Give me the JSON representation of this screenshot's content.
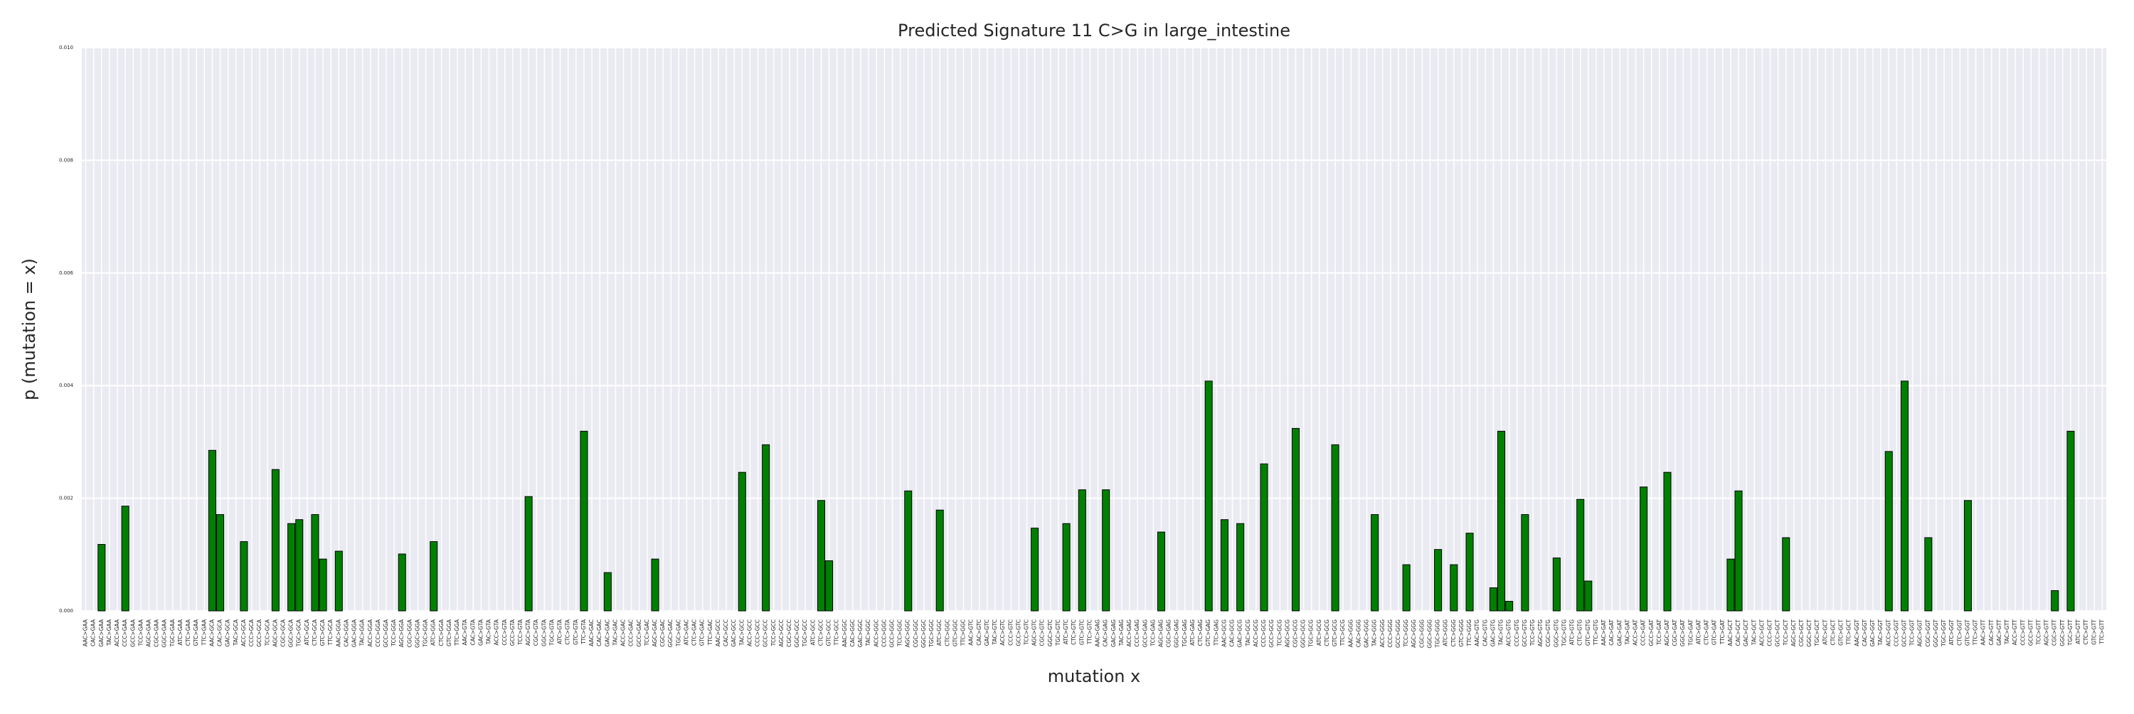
{
  "chart_data": {
    "type": "bar",
    "title": "Predicted Signature 11 C>G in large_intestine",
    "x_label": "mutation x",
    "y_label": "p (mutation = x)",
    "color": "#008000",
    "edge_color": "#000000",
    "grid": true,
    "ylim": [
      0,
      0.01
    ],
    "yticks": [
      {
        "value": 0,
        "label": "0.000"
      },
      {
        "value": 0.002,
        "label": "0.002"
      },
      {
        "value": 0.004,
        "label": "0.004"
      },
      {
        "value": 0.006,
        "label": "0.006"
      },
      {
        "value": 0.008,
        "label": "0.008"
      },
      {
        "value": 0.01,
        "label": "0.010"
      }
    ],
    "categories": [
      "AAC>GAA",
      "CAC>GAA",
      "GAC>GAA",
      "TAC>GAA",
      "ACC>GAA",
      "CCC>GAA",
      "GCC>GAA",
      "TCC>GAA",
      "AGC>GAA",
      "CGC>GAA",
      "GGC>GAA",
      "TGC>GAA",
      "ATC>GAA",
      "CTC>GAA",
      "GTC>GAA",
      "TTC>GAA",
      "AAC>GCA",
      "CAC>GCA",
      "GAC>GCA",
      "TAC>GCA",
      "ACC>GCA",
      "CCC>GCA",
      "GCC>GCA",
      "TCC>GCA",
      "AGC>GCA",
      "CGC>GCA",
      "GGC>GCA",
      "TGC>GCA",
      "ATC>GCA",
      "CTC>GCA",
      "GTC>GCA",
      "TTC>GCA",
      "AAC>GGA",
      "CAC>GGA",
      "GAC>GGA",
      "TAC>GGA",
      "ACC>GGA",
      "CCC>GGA",
      "GCC>GGA",
      "TCC>GGA",
      "AGC>GGA",
      "CGC>GGA",
      "GGC>GGA",
      "TGC>GGA",
      "ATC>GGA",
      "CTC>GGA",
      "GTC>GGA",
      "TTC>GGA",
      "AAC>GTA",
      "CAC>GTA",
      "GAC>GTA",
      "TAC>GTA",
      "ACC>GTA",
      "CCC>GTA",
      "GCC>GTA",
      "TCC>GTA",
      "AGC>GTA",
      "CGC>GTA",
      "GGC>GTA",
      "TGC>GTA",
      "ATC>GTA",
      "CTC>GTA",
      "GTC>GTA",
      "TTC>GTA",
      "AAC>GAC",
      "CAC>GAC",
      "GAC>GAC",
      "TAC>GAC",
      "ACC>GAC",
      "CCC>GAC",
      "GCC>GAC",
      "TCC>GAC",
      "AGC>GAC",
      "CGC>GAC",
      "GGC>GAC",
      "TGC>GAC",
      "ATC>GAC",
      "CTC>GAC",
      "GTC>GAC",
      "TTC>GAC",
      "AAC>GCC",
      "CAC>GCC",
      "GAC>GCC",
      "TAC>GCC",
      "ACC>GCC",
      "CCC>GCC",
      "GCC>GCC",
      "TCC>GCC",
      "AGC>GCC",
      "CGC>GCC",
      "GGC>GCC",
      "TGC>GCC",
      "ATC>GCC",
      "CTC>GCC",
      "GTC>GCC",
      "TTC>GCC",
      "AAC>GGC",
      "CAC>GGC",
      "GAC>GGC",
      "TAC>GGC",
      "ACC>GGC",
      "CCC>GGC",
      "GCC>GGC",
      "TCC>GGC",
      "AGC>GGC",
      "CGC>GGC",
      "GGC>GGC",
      "TGC>GGC",
      "ATC>GGC",
      "CTC>GGC",
      "GTC>GGC",
      "TTC>GGC",
      "AAC>GTC",
      "CAC>GTC",
      "GAC>GTC",
      "TAC>GTC",
      "ACC>GTC",
      "CCC>GTC",
      "GCC>GTC",
      "TCC>GTC",
      "AGC>GTC",
      "CGC>GTC",
      "GGC>GTC",
      "TGC>GTC",
      "ATC>GTC",
      "CTC>GTC",
      "GTC>GTC",
      "TTC>GTC",
      "AAC>GAG",
      "CAC>GAG",
      "GAC>GAG",
      "TAC>GAG",
      "ACC>GAG",
      "CCC>GAG",
      "GCC>GAG",
      "TCC>GAG",
      "AGC>GAG",
      "CGC>GAG",
      "GGC>GAG",
      "TGC>GAG",
      "ATC>GAG",
      "CTC>GAG",
      "GTC>GAG",
      "TTC>GAG",
      "AAC>GCG",
      "CAC>GCG",
      "GAC>GCG",
      "TAC>GCG",
      "ACC>GCG",
      "CCC>GCG",
      "GCC>GCG",
      "TCC>GCG",
      "AGC>GCG",
      "CGC>GCG",
      "GGC>GCG",
      "TGC>GCG",
      "ATC>GCG",
      "CTC>GCG",
      "GTC>GCG",
      "TTC>GCG",
      "AAC>GGG",
      "CAC>GGG",
      "GAC>GGG",
      "TAC>GGG",
      "ACC>GGG",
      "CCC>GGG",
      "GCC>GGG",
      "TCC>GGG",
      "AGC>GGG",
      "CGC>GGG",
      "GGC>GGG",
      "TGC>GGG",
      "ATC>GGG",
      "CTC>GGG",
      "GTC>GGG",
      "TTC>GGG",
      "AAC>GTG",
      "CAC>GTG",
      "GAC>GTG",
      "TAC>GTG",
      "ACC>GTG",
      "CCC>GTG",
      "GCC>GTG",
      "TCC>GTG",
      "AGC>GTG",
      "CGC>GTG",
      "GGC>GTG",
      "TGC>GTG",
      "ATC>GTG",
      "CTC>GTG",
      "GTC>GTG",
      "TTC>GTG",
      "AAC>GAT",
      "CAC>GAT",
      "GAC>GAT",
      "TAC>GAT",
      "ACC>GAT",
      "CCC>GAT",
      "GCC>GAT",
      "TCC>GAT",
      "AGC>GAT",
      "CGC>GAT",
      "GGC>GAT",
      "TGC>GAT",
      "ATC>GAT",
      "CTC>GAT",
      "GTC>GAT",
      "TTC>GAT",
      "AAC>GCT",
      "CAC>GCT",
      "GAC>GCT",
      "TAC>GCT",
      "ACC>GCT",
      "CCC>GCT",
      "GCC>GCT",
      "TCC>GCT",
      "AGC>GCT",
      "CGC>GCT",
      "GGC>GCT",
      "TGC>GCT",
      "ATC>GCT",
      "CTC>GCT",
      "GTC>GCT",
      "TTC>GCT",
      "AAC>GGT",
      "CAC>GGT",
      "GAC>GGT",
      "TAC>GGT",
      "ACC>GGT",
      "CCC>GGT",
      "GCC>GGT",
      "TCC>GGT",
      "AGC>GGT",
      "CGC>GGT",
      "GGC>GGT",
      "TGC>GGT",
      "ATC>GGT",
      "CTC>GGT",
      "GTC>GGT",
      "TTC>GGT",
      "AAC>GTT",
      "CAC>GTT",
      "GAC>GTT",
      "TAC>GTT",
      "ACC>GTT",
      "CCC>GTT",
      "GCC>GTT",
      "TCC>GTT",
      "AGC>GTT",
      "CGC>GTT",
      "GGC>GTT",
      "TGC>GTT",
      "ATC>GTT",
      "CTC>GTT",
      "GTC>GTT",
      "TTC>GTT"
    ],
    "values": [
      0,
      0,
      0.00118,
      0,
      0,
      0.00186,
      0,
      0,
      0,
      0,
      0,
      0,
      0,
      0,
      0,
      0,
      0.00285,
      0.00171,
      0,
      0,
      0.00123,
      0,
      0,
      0,
      0.00251,
      0,
      0.00155,
      0.00162,
      0,
      0.00171,
      0.00092,
      0,
      0.00106,
      0,
      0,
      0,
      0,
      0,
      0,
      0,
      0.00101,
      0,
      0,
      0,
      0.00123,
      0,
      0,
      0,
      0,
      0,
      0,
      0,
      0,
      0,
      0,
      0,
      0.00203,
      0,
      0,
      0,
      0,
      0,
      0,
      0.00319,
      0,
      0,
      0.00068,
      0,
      0,
      0,
      0,
      0,
      0.00092,
      0,
      0,
      0,
      0,
      0,
      0,
      0,
      0,
      0,
      0,
      0.00246,
      0,
      0,
      0.00295,
      0,
      0,
      0,
      0,
      0,
      0,
      0.00196,
      0.00089,
      0,
      0,
      0,
      0,
      0,
      0,
      0,
      0,
      0,
      0.00213,
      0,
      0,
      0,
      0.00179,
      0,
      0,
      0,
      0,
      0,
      0,
      0,
      0,
      0,
      0,
      0,
      0.00147,
      0,
      0,
      0,
      0.00155,
      0,
      0.00215,
      0,
      0,
      0.00215,
      0,
      0,
      0,
      0,
      0,
      0,
      0.0014,
      0,
      0,
      0,
      0,
      0,
      0.00408,
      0,
      0.00162,
      0,
      0.00155,
      0,
      0,
      0.00261,
      0,
      0,
      0,
      0.00324,
      0,
      0,
      0,
      0,
      0.00295,
      0,
      0,
      0,
      0,
      0.00171,
      0,
      0,
      0,
      0.00082,
      0,
      0,
      0,
      0.00109,
      0,
      0.00082,
      0,
      0.00138,
      0,
      0,
      0.00041,
      0.00319,
      0.00017,
      0,
      0.00171,
      0,
      0,
      0,
      0.00094,
      0,
      0,
      0.00198,
      0.00053,
      0,
      0,
      0,
      0,
      0,
      0,
      0.0022,
      0,
      0,
      0.00246,
      0,
      0,
      0,
      0,
      0,
      0,
      0,
      0.00092,
      0.00213,
      0,
      0,
      0,
      0,
      0,
      0.0013,
      0,
      0,
      0,
      0,
      0,
      0,
      0,
      0,
      0,
      0,
      0,
      0,
      0.00283,
      0,
      0.00408,
      0,
      0,
      0.0013,
      0,
      0,
      0,
      0,
      0.00196,
      0,
      0,
      0,
      0,
      0,
      0,
      0,
      0,
      0,
      0,
      0.00036,
      0,
      0.00319,
      0,
      0,
      0,
      0
    ]
  }
}
